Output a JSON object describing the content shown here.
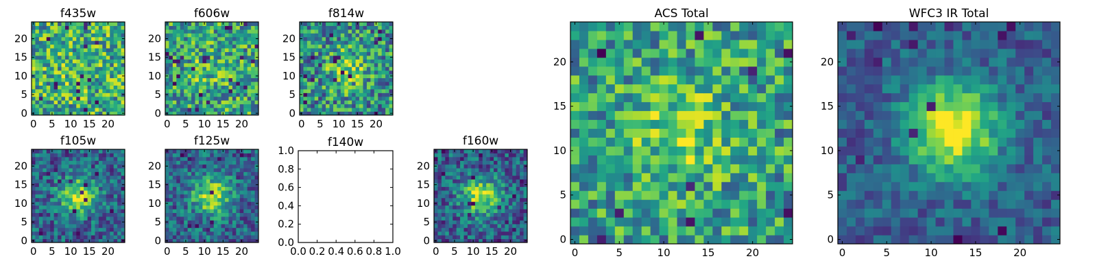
{
  "colormap": "viridis",
  "colors": {
    "axis": "#000000",
    "background": "#ffffff",
    "empty_panel": "#ffffff"
  },
  "chart_data": [
    {
      "type": "heatmap",
      "title": "f435w",
      "grid_size": 25,
      "xlim": [
        0,
        24
      ],
      "ylim": [
        0,
        24
      ],
      "xticks": [
        0,
        5,
        10,
        15,
        20
      ],
      "yticks": [
        0,
        5,
        10,
        15,
        20
      ],
      "xtick_labels": [
        "0",
        "5",
        "10",
        "15",
        "20"
      ],
      "ytick_labels": [
        "0",
        "5",
        "10",
        "15",
        "20"
      ],
      "grid": false,
      "source_note": "pixel noise, no visible source",
      "seed": 11,
      "center": [
        10,
        11
      ],
      "signal": 0.05,
      "noise": 0.34,
      "base": 0.62,
      "dark_fraction": 0.03
    },
    {
      "type": "heatmap",
      "title": "f606w",
      "grid_size": 25,
      "xlim": [
        0,
        24
      ],
      "ylim": [
        0,
        24
      ],
      "xticks": [
        0,
        5,
        10,
        15,
        20
      ],
      "yticks": [
        0,
        5,
        10,
        15,
        20
      ],
      "xtick_labels": [
        "0",
        "5",
        "10",
        "15",
        "20"
      ],
      "ytick_labels": [
        "0",
        "5",
        "10",
        "15",
        "20"
      ],
      "grid": false,
      "seed": 23,
      "center": [
        11,
        12
      ],
      "signal": 0.12,
      "noise": 0.33,
      "base": 0.58,
      "dark_fraction": 0.03
    },
    {
      "type": "heatmap",
      "title": "f814w",
      "grid_size": 25,
      "xlim": [
        0,
        24
      ],
      "ylim": [
        0,
        24
      ],
      "xticks": [
        0,
        5,
        10,
        15,
        20
      ],
      "yticks": [
        0,
        5,
        10,
        15,
        20
      ],
      "xtick_labels": [
        "0",
        "5",
        "10",
        "15",
        "20"
      ],
      "ytick_labels": [
        "0",
        "5",
        "10",
        "15",
        "20"
      ],
      "grid": false,
      "seed": 37,
      "center": [
        12,
        12
      ],
      "signal": 0.3,
      "noise": 0.34,
      "base": 0.5,
      "dark_fraction": 0.03
    },
    {
      "type": "heatmap",
      "title": "f105w",
      "grid_size": 25,
      "xlim": [
        0,
        24
      ],
      "ylim": [
        0,
        24
      ],
      "xticks": [
        0,
        5,
        10,
        15,
        20
      ],
      "yticks": [
        0,
        5,
        10,
        15,
        20
      ],
      "xtick_labels": [
        "0",
        "5",
        "10",
        "15",
        "20"
      ],
      "ytick_labels": [
        "0",
        "5",
        "10",
        "15",
        "20"
      ],
      "grid": false,
      "seed": 41,
      "center": [
        12,
        12
      ],
      "signal": 0.55,
      "noise": 0.24,
      "base": 0.32,
      "dark_fraction": 0.03
    },
    {
      "type": "heatmap",
      "title": "f125w",
      "grid_size": 25,
      "xlim": [
        0,
        24
      ],
      "ylim": [
        0,
        24
      ],
      "xticks": [
        0,
        5,
        10,
        15,
        20
      ],
      "yticks": [
        0,
        5,
        10,
        15,
        20
      ],
      "xtick_labels": [
        "0",
        "5",
        "10",
        "15",
        "20"
      ],
      "ytick_labels": [
        "0",
        "5",
        "10",
        "15",
        "20"
      ],
      "grid": false,
      "seed": 53,
      "center": [
        12,
        12
      ],
      "signal": 0.55,
      "noise": 0.24,
      "base": 0.34,
      "dark_fraction": 0.03
    },
    {
      "type": "empty",
      "title": "f140w",
      "xlim": [
        0.0,
        1.0
      ],
      "ylim": [
        0.0,
        1.0
      ],
      "xticks": [
        0,
        0.2,
        0.4,
        0.6,
        0.8,
        1.0
      ],
      "yticks": [
        0,
        0.2,
        0.4,
        0.6,
        0.8,
        1.0
      ],
      "xtick_labels": [
        "0.0",
        "0.2",
        "0.4",
        "0.6",
        "0.8",
        "1.0"
      ],
      "ytick_labels": [
        "0.0",
        "0.2",
        "0.4",
        "0.6",
        "0.8",
        "1.0"
      ],
      "grid": false
    },
    {
      "type": "heatmap",
      "title": "f160w",
      "grid_size": 25,
      "xlim": [
        0,
        24
      ],
      "ylim": [
        0,
        24
      ],
      "xticks": [
        0,
        5,
        10,
        15,
        20
      ],
      "yticks": [
        0,
        5,
        10,
        15,
        20
      ],
      "xtick_labels": [
        "0",
        "5",
        "10",
        "15",
        "20"
      ],
      "ytick_labels": [
        "0",
        "5",
        "10",
        "15",
        "20"
      ],
      "grid": false,
      "seed": 67,
      "center": [
        12,
        12
      ],
      "signal": 0.58,
      "noise": 0.24,
      "base": 0.32,
      "dark_fraction": 0.04
    },
    {
      "type": "heatmap",
      "title": "ACS Total",
      "grid_size": 25,
      "xlim": [
        0,
        24
      ],
      "ylim": [
        0,
        24
      ],
      "xticks": [
        0,
        5,
        10,
        15,
        20
      ],
      "yticks": [
        0,
        5,
        10,
        15,
        20
      ],
      "xtick_labels": [
        "0",
        "5",
        "10",
        "15",
        "20"
      ],
      "ytick_labels": [
        "0",
        "5",
        "10",
        "15",
        "20"
      ],
      "grid": false,
      "seed": 79,
      "center": [
        12,
        12
      ],
      "signal": 0.28,
      "noise": 0.3,
      "base": 0.56,
      "dark_fraction": 0.02
    },
    {
      "type": "heatmap",
      "title": "WFC3 IR Total",
      "grid_size": 25,
      "xlim": [
        0,
        24
      ],
      "ylim": [
        0,
        24
      ],
      "xticks": [
        0,
        5,
        10,
        15,
        20
      ],
      "yticks": [
        0,
        5,
        10,
        15,
        20
      ],
      "xtick_labels": [
        "0",
        "5",
        "10",
        "15",
        "20"
      ],
      "ytick_labels": [
        "0",
        "5",
        "10",
        "15",
        "20"
      ],
      "grid": false,
      "seed": 97,
      "center": [
        12.5,
        12.5
      ],
      "signal": 0.72,
      "noise": 0.16,
      "base": 0.3,
      "dark_fraction": 0.03
    }
  ]
}
